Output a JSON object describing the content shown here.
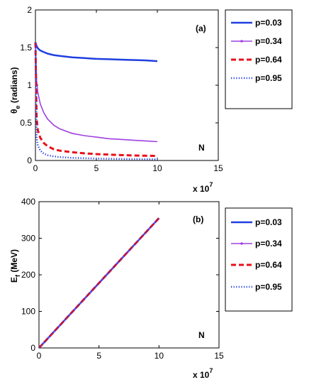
{
  "chart_data": [
    {
      "type": "line",
      "panel_label": "(a)",
      "ylabel": "θ",
      "ylabel_subscript": "e",
      "ylabel_suffix": " (radians)",
      "xlabel": "N",
      "x_multiplier": "x 10",
      "x_multiplier_exp": "7",
      "xlim": [
        0,
        15
      ],
      "ylim": [
        0,
        2
      ],
      "xticks": [
        "0",
        "5",
        "10",
        "15"
      ],
      "yticks": [
        "0",
        "0.5",
        "1",
        "1.5",
        "2"
      ],
      "xtick_values": [
        0,
        5,
        10,
        15
      ],
      "ytick_values": [
        0,
        0.5,
        1,
        1.5,
        2
      ],
      "grid": false,
      "legend_position": "outside-right",
      "x": [
        0,
        0.1,
        0.2,
        0.4,
        0.7,
        1,
        1.5,
        2,
        3,
        4,
        5,
        6,
        7,
        8,
        9,
        10
      ],
      "series": [
        {
          "name": "p=0.03",
          "color": "#1f3fe0",
          "style": "solid",
          "values": [
            1.57,
            1.52,
            1.49,
            1.46,
            1.44,
            1.42,
            1.4,
            1.39,
            1.37,
            1.36,
            1.35,
            1.345,
            1.34,
            1.335,
            1.33,
            1.32
          ]
        },
        {
          "name": "p=0.34",
          "color": "#a040e0",
          "style": "solid-dot",
          "values": [
            1.57,
            1.05,
            0.9,
            0.75,
            0.63,
            0.55,
            0.47,
            0.42,
            0.36,
            0.33,
            0.31,
            0.29,
            0.28,
            0.27,
            0.26,
            0.25
          ]
        },
        {
          "name": "p=0.64",
          "color": "#e8101a",
          "style": "dashed",
          "values": [
            1.57,
            0.55,
            0.4,
            0.3,
            0.23,
            0.19,
            0.15,
            0.13,
            0.11,
            0.095,
            0.085,
            0.078,
            0.072,
            0.067,
            0.063,
            0.06
          ]
        },
        {
          "name": "p=0.95",
          "color": "#1f3fe0",
          "style": "dotted",
          "values": [
            1.57,
            0.3,
            0.2,
            0.13,
            0.09,
            0.07,
            0.055,
            0.045,
            0.035,
            0.03,
            0.026,
            0.023,
            0.021,
            0.019,
            0.018,
            0.017
          ]
        }
      ]
    },
    {
      "type": "line",
      "panel_label": "(b)",
      "ylabel": "E",
      "ylabel_subscript": "f",
      "ylabel_suffix": " (MeV)",
      "xlabel": "N",
      "x_multiplier": "x 10",
      "x_multiplier_exp": "7",
      "xlim": [
        0,
        15
      ],
      "ylim": [
        0,
        400
      ],
      "xticks": [
        "0",
        "5",
        "10",
        "15"
      ],
      "yticks": [
        "0",
        "100",
        "200",
        "300",
        "400"
      ],
      "xtick_values": [
        0,
        5,
        10,
        15
      ],
      "ytick_values": [
        0,
        100,
        200,
        300,
        400
      ],
      "grid": false,
      "legend_position": "outside-right",
      "x": [
        0,
        10
      ],
      "series": [
        {
          "name": "p=0.03",
          "color": "#1f3fe0",
          "style": "solid",
          "values": [
            0,
            355
          ]
        },
        {
          "name": "p=0.34",
          "color": "#a040e0",
          "style": "solid-dot",
          "values": [
            0,
            355
          ]
        },
        {
          "name": "p=0.64",
          "color": "#e8101a",
          "style": "dashed",
          "values": [
            0,
            355
          ]
        },
        {
          "name": "p=0.95",
          "color": "#1f3fe0",
          "style": "dotted",
          "values": [
            0,
            355
          ]
        }
      ]
    }
  ]
}
